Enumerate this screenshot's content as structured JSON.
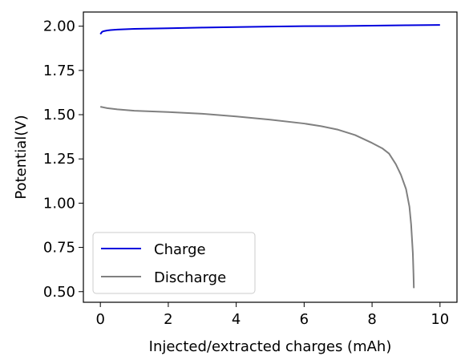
{
  "chart_data": {
    "type": "line",
    "title": "",
    "xlabel": "Injected/extracted charges (mAh)",
    "ylabel": "Potential(V)",
    "xlim": [
      -0.5,
      10.5
    ],
    "ylim": [
      0.44,
      2.08
    ],
    "xticks": [
      0,
      2,
      4,
      6,
      8,
      10
    ],
    "xtick_labels": [
      "0",
      "2",
      "4",
      "6",
      "8",
      "10"
    ],
    "yticks": [
      0.5,
      0.75,
      1.0,
      1.25,
      1.5,
      1.75,
      2.0
    ],
    "ytick_labels": [
      "0.50",
      "0.75",
      "1.00",
      "1.25",
      "1.50",
      "1.75",
      "2.00"
    ],
    "grid": false,
    "legend_position": "lower-left",
    "series": [
      {
        "name": "Charge",
        "color": "#0000dd",
        "points": [
          [
            0.0,
            1.955
          ],
          [
            0.05,
            1.968
          ],
          [
            0.1,
            1.972
          ],
          [
            0.2,
            1.976
          ],
          [
            0.3,
            1.978
          ],
          [
            0.5,
            1.981
          ],
          [
            1.0,
            1.985
          ],
          [
            2.0,
            1.988
          ],
          [
            3.0,
            1.992
          ],
          [
            4.0,
            1.995
          ],
          [
            5.0,
            1.998
          ],
          [
            6.0,
            2.0
          ],
          [
            7.0,
            2.001
          ],
          [
            8.0,
            2.003
          ],
          [
            9.0,
            2.005
          ],
          [
            10.0,
            2.007
          ]
        ]
      },
      {
        "name": "Discharge",
        "color": "#808080",
        "points": [
          [
            0.0,
            1.545
          ],
          [
            0.2,
            1.537
          ],
          [
            0.5,
            1.53
          ],
          [
            1.0,
            1.522
          ],
          [
            2.0,
            1.515
          ],
          [
            3.0,
            1.505
          ],
          [
            4.0,
            1.49
          ],
          [
            5.0,
            1.472
          ],
          [
            6.0,
            1.45
          ],
          [
            6.5,
            1.435
          ],
          [
            7.0,
            1.415
          ],
          [
            7.5,
            1.385
          ],
          [
            8.0,
            1.34
          ],
          [
            8.3,
            1.31
          ],
          [
            8.5,
            1.28
          ],
          [
            8.7,
            1.22
          ],
          [
            8.85,
            1.16
          ],
          [
            9.0,
            1.08
          ],
          [
            9.1,
            0.98
          ],
          [
            9.15,
            0.88
          ],
          [
            9.2,
            0.72
          ],
          [
            9.22,
            0.6
          ],
          [
            9.23,
            0.52
          ]
        ]
      }
    ]
  }
}
